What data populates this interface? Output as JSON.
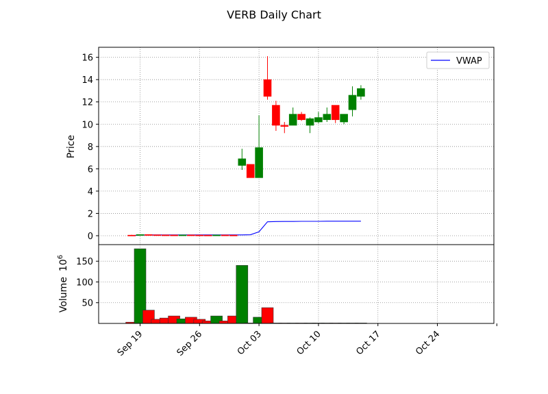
{
  "chart_data": {
    "type": "candlestick",
    "title": "VERB Daily Chart",
    "price_panel": {
      "ylabel": "Price",
      "ylim": [
        -0.8,
        16.9
      ],
      "yticks": [
        0,
        2,
        4,
        6,
        8,
        10,
        12,
        14,
        16
      ],
      "legend": {
        "label": "VWAP",
        "position": "top-right"
      },
      "grid": true
    },
    "volume_panel": {
      "ylabel": "Volume",
      "ylabel_multiplier": "10^6",
      "ylim": [
        0,
        190
      ],
      "yticks": [
        50,
        100,
        150
      ],
      "grid": true
    },
    "x_ticks": [
      {
        "label": "Sep 19",
        "day": 0
      },
      {
        "label": "Sep 26",
        "day": 7
      },
      {
        "label": "Oct 03",
        "day": 14
      },
      {
        "label": "Oct 10",
        "day": 21
      },
      {
        "label": "Oct 17",
        "day": 28
      },
      {
        "label": "Oct 24",
        "day": 35
      }
    ],
    "candles": [
      {
        "day": -1,
        "open": 0.05,
        "high": 0.08,
        "low": 0.03,
        "close": 0.04,
        "volume": 3
      },
      {
        "day": 0,
        "open": 0.04,
        "high": 0.12,
        "low": 0.03,
        "close": 0.1,
        "volume": 180
      },
      {
        "day": 1,
        "open": 0.1,
        "high": 0.11,
        "low": 0.07,
        "close": 0.08,
        "volume": 32
      },
      {
        "day": 2,
        "open": 0.08,
        "high": 0.09,
        "low": 0.06,
        "close": 0.07,
        "volume": 10
      },
      {
        "day": 3,
        "open": 0.07,
        "high": 0.08,
        "low": 0.06,
        "close": 0.065,
        "volume": 13
      },
      {
        "day": 4,
        "open": 0.065,
        "high": 0.07,
        "low": 0.05,
        "close": 0.06,
        "volume": 18
      },
      {
        "day": 5,
        "open": 0.06,
        "high": 0.08,
        "low": 0.05,
        "close": 0.07,
        "volume": 11
      },
      {
        "day": 6,
        "open": 0.07,
        "high": 0.075,
        "low": 0.05,
        "close": 0.06,
        "volume": 15
      },
      {
        "day": 7,
        "open": 0.06,
        "high": 0.065,
        "low": 0.05,
        "close": 0.055,
        "volume": 10
      },
      {
        "day": 8,
        "open": 0.055,
        "high": 0.06,
        "low": 0.045,
        "close": 0.05,
        "volume": 6
      },
      {
        "day": 9,
        "open": 0.05,
        "high": 0.07,
        "low": 0.045,
        "close": 0.065,
        "volume": 18
      },
      {
        "day": 10,
        "open": 0.065,
        "high": 0.07,
        "low": 0.05,
        "close": 0.055,
        "volume": 6
      },
      {
        "day": 11,
        "open": 0.055,
        "high": 0.06,
        "low": 0.045,
        "close": 0.05,
        "volume": 18
      },
      {
        "day": 12,
        "open": 6.3,
        "high": 7.8,
        "low": 5.9,
        "close": 6.9,
        "volume": 140
      },
      {
        "day": 13,
        "open": 6.4,
        "high": 6.4,
        "low": 5.2,
        "close": 5.2,
        "volume": 1
      },
      {
        "day": 14,
        "open": 5.2,
        "high": 10.8,
        "low": 5.2,
        "close": 7.9,
        "volume": 15
      },
      {
        "day": 15,
        "open": 14.0,
        "high": 16.1,
        "low": 12.2,
        "close": 12.5,
        "volume": 38
      },
      {
        "day": 16,
        "open": 11.7,
        "high": 12.1,
        "low": 9.4,
        "close": 9.9,
        "volume": 1
      },
      {
        "day": 17,
        "open": 9.9,
        "high": 10.2,
        "low": 9.2,
        "close": 9.8,
        "volume": 1
      },
      {
        "day": 18,
        "open": 9.9,
        "high": 11.5,
        "low": 9.9,
        "close": 10.9,
        "volume": 1
      },
      {
        "day": 19,
        "open": 10.9,
        "high": 11.1,
        "low": 10.3,
        "close": 10.4,
        "volume": 1
      },
      {
        "day": 20,
        "open": 9.9,
        "high": 10.6,
        "low": 9.2,
        "close": 10.5,
        "volume": 1
      },
      {
        "day": 21,
        "open": 10.2,
        "high": 11.1,
        "low": 10.1,
        "close": 10.6,
        "volume": 1
      },
      {
        "day": 22,
        "open": 10.4,
        "high": 11.5,
        "low": 10.2,
        "close": 10.9,
        "volume": 1
      },
      {
        "day": 23,
        "open": 11.7,
        "high": 11.7,
        "low": 10.1,
        "close": 10.4,
        "volume": 1
      },
      {
        "day": 24,
        "open": 10.2,
        "high": 10.9,
        "low": 10.0,
        "close": 10.9,
        "volume": 1
      },
      {
        "day": 25,
        "open": 11.3,
        "high": 13.4,
        "low": 10.7,
        "close": 12.6,
        "volume": 1
      },
      {
        "day": 26,
        "open": 12.5,
        "high": 13.5,
        "low": 12.2,
        "close": 13.2,
        "volume": 1
      }
    ],
    "vwap": [
      0.01,
      0.06,
      0.07,
      0.07,
      0.07,
      0.07,
      0.07,
      0.07,
      0.07,
      0.07,
      0.07,
      0.07,
      0.07,
      0.07,
      0.09,
      0.35,
      1.25,
      1.27,
      1.28,
      1.28,
      1.29,
      1.29,
      1.29,
      1.3,
      1.3,
      1.3,
      1.3,
      1.3
    ],
    "colors": {
      "up": "#008000",
      "down": "#ff0000",
      "vwap": "#0000ff",
      "grid": "#888888"
    }
  }
}
